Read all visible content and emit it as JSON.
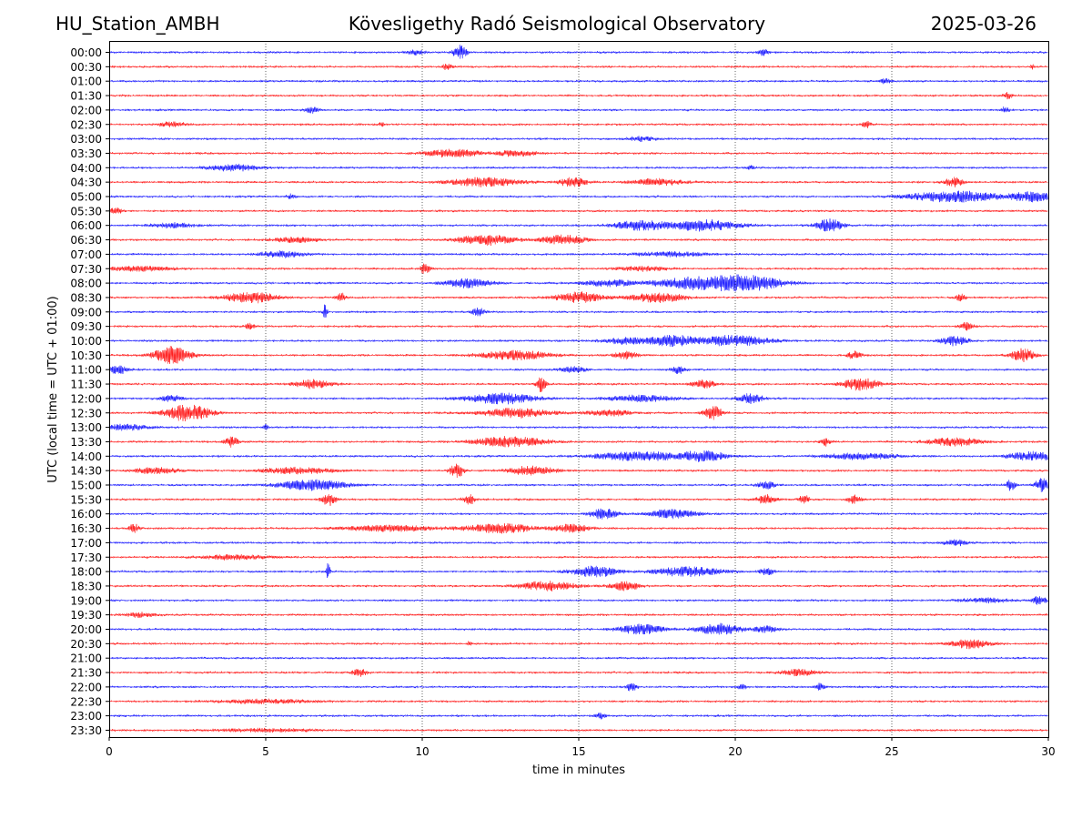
{
  "header": {
    "station": "HU_Station_AMBH",
    "observatory": "Kövesligethy Radó Seismological Observatory",
    "date": "2025-03-26"
  },
  "chart_data": {
    "type": "line",
    "title": "Kövesligethy Radó Seismological Observatory",
    "xlabel": "time in minutes",
    "ylabel": "UTC (local time = UTC + 01:00)",
    "xlim": [
      0,
      30
    ],
    "xticks": [
      0,
      5,
      10,
      15,
      20,
      25,
      30
    ],
    "grid_x": [
      5,
      10,
      15,
      20,
      25
    ],
    "rows": [
      "00:00",
      "00:30",
      "01:00",
      "01:30",
      "02:00",
      "02:30",
      "03:00",
      "03:30",
      "04:00",
      "04:30",
      "05:00",
      "05:30",
      "06:00",
      "06:30",
      "07:00",
      "07:30",
      "08:00",
      "08:30",
      "09:00",
      "09:30",
      "10:00",
      "10:30",
      "11:00",
      "11:30",
      "12:00",
      "12:30",
      "13:00",
      "13:30",
      "14:00",
      "14:30",
      "15:00",
      "15:30",
      "16:00",
      "16:30",
      "17:00",
      "17:30",
      "18:00",
      "18:30",
      "19:00",
      "19:30",
      "20:00",
      "20:30",
      "21:00",
      "21:30",
      "22:00",
      "22:30",
      "23:00",
      "23:30"
    ],
    "trace_colors": [
      "#0000ff",
      "#ff0000"
    ],
    "events": [
      {
        "row": "00:00",
        "bursts": [
          {
            "x": 11.2,
            "amp": 0.45,
            "w": 0.3
          },
          {
            "x": 9.8,
            "amp": 0.15,
            "w": 0.4
          },
          {
            "x": 20.9,
            "amp": 0.2,
            "w": 0.2
          }
        ]
      },
      {
        "row": "00:30",
        "bursts": [
          {
            "x": 10.8,
            "amp": 0.2,
            "w": 0.2
          },
          {
            "x": 29.5,
            "amp": 0.15,
            "w": 0.1
          }
        ]
      },
      {
        "row": "01:00",
        "bursts": [
          {
            "x": 24.8,
            "amp": 0.2,
            "w": 0.2
          }
        ]
      },
      {
        "row": "01:30",
        "bursts": [
          {
            "x": 28.7,
            "amp": 0.2,
            "w": 0.2
          }
        ]
      },
      {
        "row": "02:00",
        "bursts": [
          {
            "x": 6.5,
            "amp": 0.2,
            "w": 0.3
          },
          {
            "x": 28.6,
            "amp": 0.2,
            "w": 0.2
          }
        ]
      },
      {
        "row": "02:30",
        "bursts": [
          {
            "x": 2.0,
            "amp": 0.15,
            "w": 0.6
          },
          {
            "x": 8.7,
            "amp": 0.15,
            "w": 0.1
          },
          {
            "x": 24.2,
            "amp": 0.2,
            "w": 0.2
          }
        ]
      },
      {
        "row": "03:00",
        "bursts": [
          {
            "x": 17.0,
            "amp": 0.15,
            "w": 0.6
          }
        ]
      },
      {
        "row": "03:30",
        "bursts": [
          {
            "x": 11.0,
            "amp": 0.25,
            "w": 1.2
          },
          {
            "x": 13.0,
            "amp": 0.2,
            "w": 0.8
          }
        ]
      },
      {
        "row": "04:00",
        "bursts": [
          {
            "x": 4.0,
            "amp": 0.2,
            "w": 1.2
          },
          {
            "x": 20.5,
            "amp": 0.1,
            "w": 0.2
          }
        ]
      },
      {
        "row": "04:30",
        "bursts": [
          {
            "x": 12.0,
            "amp": 0.3,
            "w": 1.5
          },
          {
            "x": 14.8,
            "amp": 0.3,
            "w": 0.6
          },
          {
            "x": 17.5,
            "amp": 0.2,
            "w": 1.2
          },
          {
            "x": 27.0,
            "amp": 0.3,
            "w": 0.4
          }
        ]
      },
      {
        "row": "05:00",
        "bursts": [
          {
            "x": 27.0,
            "amp": 0.35,
            "w": 2.0
          },
          {
            "x": 29.5,
            "amp": 0.3,
            "w": 1.0
          },
          {
            "x": 5.8,
            "amp": 0.15,
            "w": 0.2
          }
        ]
      },
      {
        "row": "05:30",
        "bursts": [
          {
            "x": 0.2,
            "amp": 0.2,
            "w": 0.3
          }
        ]
      },
      {
        "row": "06:00",
        "bursts": [
          {
            "x": 17.0,
            "amp": 0.3,
            "w": 1.2
          },
          {
            "x": 19.0,
            "amp": 0.35,
            "w": 1.5
          },
          {
            "x": 23.0,
            "amp": 0.4,
            "w": 0.6
          },
          {
            "x": 2.0,
            "amp": 0.15,
            "w": 1.0
          }
        ]
      },
      {
        "row": "06:30",
        "bursts": [
          {
            "x": 12.0,
            "amp": 0.35,
            "w": 1.2
          },
          {
            "x": 14.5,
            "amp": 0.3,
            "w": 1.0
          },
          {
            "x": 6.0,
            "amp": 0.15,
            "w": 1.0
          }
        ]
      },
      {
        "row": "07:00",
        "bursts": [
          {
            "x": 5.5,
            "amp": 0.2,
            "w": 1.0
          },
          {
            "x": 18.0,
            "amp": 0.15,
            "w": 1.5
          }
        ]
      },
      {
        "row": "07:30",
        "bursts": [
          {
            "x": 10.1,
            "amp": 0.4,
            "w": 0.2
          },
          {
            "x": 1.0,
            "amp": 0.15,
            "w": 1.5
          },
          {
            "x": 17.0,
            "amp": 0.15,
            "w": 1.0
          }
        ]
      },
      {
        "row": "08:00",
        "bursts": [
          {
            "x": 11.5,
            "amp": 0.3,
            "w": 1.0
          },
          {
            "x": 18.8,
            "amp": 0.4,
            "w": 1.8
          },
          {
            "x": 20.5,
            "amp": 0.45,
            "w": 1.5
          },
          {
            "x": 16.0,
            "amp": 0.2,
            "w": 1.2
          }
        ]
      },
      {
        "row": "08:30",
        "bursts": [
          {
            "x": 4.5,
            "amp": 0.35,
            "w": 1.2
          },
          {
            "x": 7.4,
            "amp": 0.3,
            "w": 0.2
          },
          {
            "x": 15.0,
            "amp": 0.35,
            "w": 1.0
          },
          {
            "x": 17.5,
            "amp": 0.3,
            "w": 1.2
          },
          {
            "x": 27.2,
            "amp": 0.25,
            "w": 0.2
          }
        ]
      },
      {
        "row": "09:00",
        "bursts": [
          {
            "x": 6.9,
            "amp": 0.55,
            "w": 0.08
          },
          {
            "x": 11.8,
            "amp": 0.25,
            "w": 0.3
          }
        ]
      },
      {
        "row": "09:30",
        "bursts": [
          {
            "x": 4.5,
            "amp": 0.2,
            "w": 0.2
          },
          {
            "x": 27.4,
            "amp": 0.25,
            "w": 0.3
          }
        ]
      },
      {
        "row": "10:00",
        "bursts": [
          {
            "x": 18.0,
            "amp": 0.35,
            "w": 1.0
          },
          {
            "x": 20.0,
            "amp": 0.35,
            "w": 1.5
          },
          {
            "x": 27.0,
            "amp": 0.3,
            "w": 0.6
          },
          {
            "x": 16.5,
            "amp": 0.2,
            "w": 1.0
          }
        ]
      },
      {
        "row": "10:30",
        "bursts": [
          {
            "x": 2.0,
            "amp": 0.6,
            "w": 0.8
          },
          {
            "x": 13.0,
            "amp": 0.3,
            "w": 1.5
          },
          {
            "x": 16.5,
            "amp": 0.25,
            "w": 0.5
          },
          {
            "x": 23.8,
            "amp": 0.25,
            "w": 0.3
          },
          {
            "x": 29.2,
            "amp": 0.45,
            "w": 0.5
          }
        ]
      },
      {
        "row": "11:00",
        "bursts": [
          {
            "x": 0.3,
            "amp": 0.3,
            "w": 0.4
          },
          {
            "x": 18.2,
            "amp": 0.25,
            "w": 0.3
          },
          {
            "x": 14.8,
            "amp": 0.2,
            "w": 0.6
          }
        ]
      },
      {
        "row": "11:30",
        "bursts": [
          {
            "x": 6.5,
            "amp": 0.3,
            "w": 0.8
          },
          {
            "x": 13.8,
            "amp": 0.5,
            "w": 0.2
          },
          {
            "x": 19.0,
            "amp": 0.25,
            "w": 0.5
          },
          {
            "x": 24.0,
            "amp": 0.4,
            "w": 0.8
          }
        ]
      },
      {
        "row": "12:00",
        "bursts": [
          {
            "x": 12.5,
            "amp": 0.35,
            "w": 1.5
          },
          {
            "x": 20.5,
            "amp": 0.35,
            "w": 0.5
          },
          {
            "x": 17.0,
            "amp": 0.2,
            "w": 1.5
          },
          {
            "x": 2.0,
            "amp": 0.2,
            "w": 0.5
          }
        ]
      },
      {
        "row": "12:30",
        "bursts": [
          {
            "x": 2.5,
            "amp": 0.55,
            "w": 1.0
          },
          {
            "x": 13.0,
            "amp": 0.3,
            "w": 1.5
          },
          {
            "x": 19.3,
            "amp": 0.45,
            "w": 0.4
          },
          {
            "x": 16.0,
            "amp": 0.2,
            "w": 1.0
          }
        ]
      },
      {
        "row": "13:00",
        "bursts": [
          {
            "x": 5.0,
            "amp": 0.35,
            "w": 0.1
          },
          {
            "x": 0.5,
            "amp": 0.2,
            "w": 1.0
          }
        ]
      },
      {
        "row": "13:30",
        "bursts": [
          {
            "x": 3.9,
            "amp": 0.35,
            "w": 0.3
          },
          {
            "x": 12.8,
            "amp": 0.35,
            "w": 1.5
          },
          {
            "x": 22.9,
            "amp": 0.25,
            "w": 0.2
          },
          {
            "x": 27.0,
            "amp": 0.25,
            "w": 1.2
          }
        ]
      },
      {
        "row": "14:00",
        "bursts": [
          {
            "x": 17.0,
            "amp": 0.3,
            "w": 2.0
          },
          {
            "x": 19.0,
            "amp": 0.3,
            "w": 1.0
          },
          {
            "x": 29.5,
            "amp": 0.3,
            "w": 1.0
          },
          {
            "x": 24.0,
            "amp": 0.2,
            "w": 1.5
          }
        ]
      },
      {
        "row": "14:30",
        "bursts": [
          {
            "x": 11.1,
            "amp": 0.5,
            "w": 0.3
          },
          {
            "x": 13.5,
            "amp": 0.3,
            "w": 1.0
          },
          {
            "x": 6.0,
            "amp": 0.2,
            "w": 1.5
          },
          {
            "x": 1.5,
            "amp": 0.2,
            "w": 1.0
          }
        ]
      },
      {
        "row": "15:00",
        "bursts": [
          {
            "x": 6.5,
            "amp": 0.35,
            "w": 1.5
          },
          {
            "x": 21.0,
            "amp": 0.25,
            "w": 0.4
          },
          {
            "x": 28.8,
            "amp": 0.35,
            "w": 0.2
          },
          {
            "x": 29.8,
            "amp": 0.45,
            "w": 0.3
          }
        ]
      },
      {
        "row": "15:30",
        "bursts": [
          {
            "x": 7.0,
            "amp": 0.45,
            "w": 0.3
          },
          {
            "x": 11.5,
            "amp": 0.3,
            "w": 0.3
          },
          {
            "x": 21.0,
            "amp": 0.3,
            "w": 0.4
          },
          {
            "x": 22.2,
            "amp": 0.35,
            "w": 0.2
          },
          {
            "x": 23.8,
            "amp": 0.25,
            "w": 0.3
          }
        ]
      },
      {
        "row": "16:00",
        "bursts": [
          {
            "x": 15.8,
            "amp": 0.35,
            "w": 0.6
          },
          {
            "x": 18.0,
            "amp": 0.3,
            "w": 1.0
          }
        ]
      },
      {
        "row": "16:30",
        "bursts": [
          {
            "x": 0.8,
            "amp": 0.3,
            "w": 0.2
          },
          {
            "x": 12.5,
            "amp": 0.3,
            "w": 1.5
          },
          {
            "x": 14.8,
            "amp": 0.25,
            "w": 0.8
          },
          {
            "x": 9.0,
            "amp": 0.2,
            "w": 2.0
          }
        ]
      },
      {
        "row": "17:00",
        "bursts": [
          {
            "x": 27.0,
            "amp": 0.2,
            "w": 0.5
          }
        ]
      },
      {
        "row": "17:30",
        "bursts": [
          {
            "x": 4.0,
            "amp": 0.15,
            "w": 1.5
          }
        ]
      },
      {
        "row": "18:00",
        "bursts": [
          {
            "x": 7.0,
            "amp": 0.65,
            "w": 0.08
          },
          {
            "x": 15.5,
            "amp": 0.35,
            "w": 1.0
          },
          {
            "x": 18.5,
            "amp": 0.3,
            "w": 1.5
          },
          {
            "x": 21.0,
            "amp": 0.25,
            "w": 0.3
          }
        ]
      },
      {
        "row": "18:30",
        "bursts": [
          {
            "x": 14.0,
            "amp": 0.3,
            "w": 1.2
          },
          {
            "x": 16.5,
            "amp": 0.3,
            "w": 0.6
          }
        ]
      },
      {
        "row": "19:00",
        "bursts": [
          {
            "x": 29.7,
            "amp": 0.3,
            "w": 0.3
          },
          {
            "x": 28.0,
            "amp": 0.15,
            "w": 1.0
          }
        ]
      },
      {
        "row": "19:30",
        "bursts": [
          {
            "x": 1.0,
            "amp": 0.15,
            "w": 0.6
          }
        ]
      },
      {
        "row": "20:00",
        "bursts": [
          {
            "x": 17.0,
            "amp": 0.3,
            "w": 1.0
          },
          {
            "x": 19.5,
            "amp": 0.35,
            "w": 1.0
          },
          {
            "x": 21.0,
            "amp": 0.2,
            "w": 0.5
          }
        ]
      },
      {
        "row": "20:30",
        "bursts": [
          {
            "x": 27.5,
            "amp": 0.3,
            "w": 0.8
          },
          {
            "x": 11.5,
            "amp": 0.15,
            "w": 0.1
          }
        ]
      },
      {
        "row": "21:00",
        "bursts": []
      },
      {
        "row": "21:30",
        "bursts": [
          {
            "x": 8.0,
            "amp": 0.25,
            "w": 0.3
          },
          {
            "x": 22.0,
            "amp": 0.2,
            "w": 0.8
          }
        ]
      },
      {
        "row": "22:00",
        "bursts": [
          {
            "x": 16.7,
            "amp": 0.35,
            "w": 0.2
          },
          {
            "x": 20.2,
            "amp": 0.2,
            "w": 0.2
          },
          {
            "x": 22.7,
            "amp": 0.2,
            "w": 0.2
          }
        ]
      },
      {
        "row": "22:30",
        "bursts": [
          {
            "x": 5.0,
            "amp": 0.12,
            "w": 2.0
          }
        ]
      },
      {
        "row": "23:00",
        "bursts": [
          {
            "x": 15.7,
            "amp": 0.2,
            "w": 0.2
          }
        ]
      },
      {
        "row": "23:30",
        "bursts": [
          {
            "x": 5.0,
            "amp": 0.1,
            "w": 2.0
          }
        ]
      }
    ]
  }
}
